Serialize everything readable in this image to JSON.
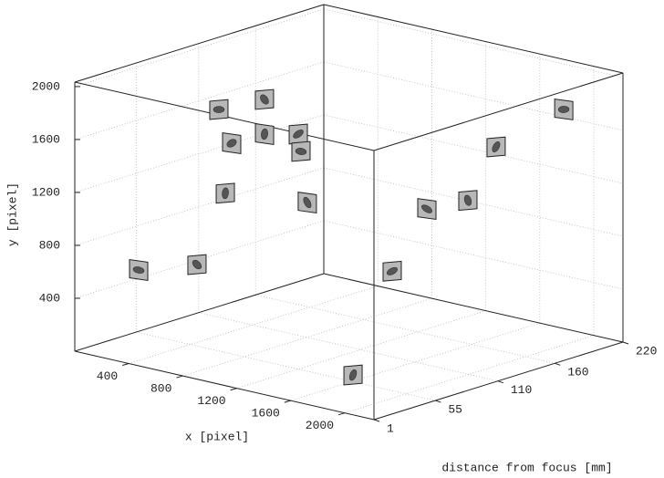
{
  "chart_data": {
    "type": "scatter3d",
    "xlabel": "x [pixel]",
    "ylabel": "y [pixel]",
    "zlabel": "distance from focus [mm]",
    "xlim": [
      0,
      2216
    ],
    "ylim": [
      0,
      2034
    ],
    "zlim": [
      1,
      220
    ],
    "xticks": [
      400,
      800,
      1200,
      1600,
      2000
    ],
    "yticks": [
      400,
      800,
      1200,
      1600,
      2000
    ],
    "zticks": [
      1,
      55,
      110,
      160,
      220
    ],
    "grid": true,
    "x": [
      473,
      905,
      955,
      1002,
      823,
      908,
      1077,
      1327,
      1347,
      1478,
      2061,
      2191,
      2111,
      2078,
      1866,
      1946
    ],
    "y": [
      724,
      866,
      1366,
      1755,
      1941,
      1957,
      1788,
      1847,
      1720,
      1391,
      301,
      1065,
      1410,
      1360,
      1581,
      1749
    ],
    "z": [
      1,
      1,
      20,
      20,
      30,
      60,
      40,
      40,
      40,
      30,
      1,
      20,
      60,
      100,
      150,
      200
    ]
  }
}
